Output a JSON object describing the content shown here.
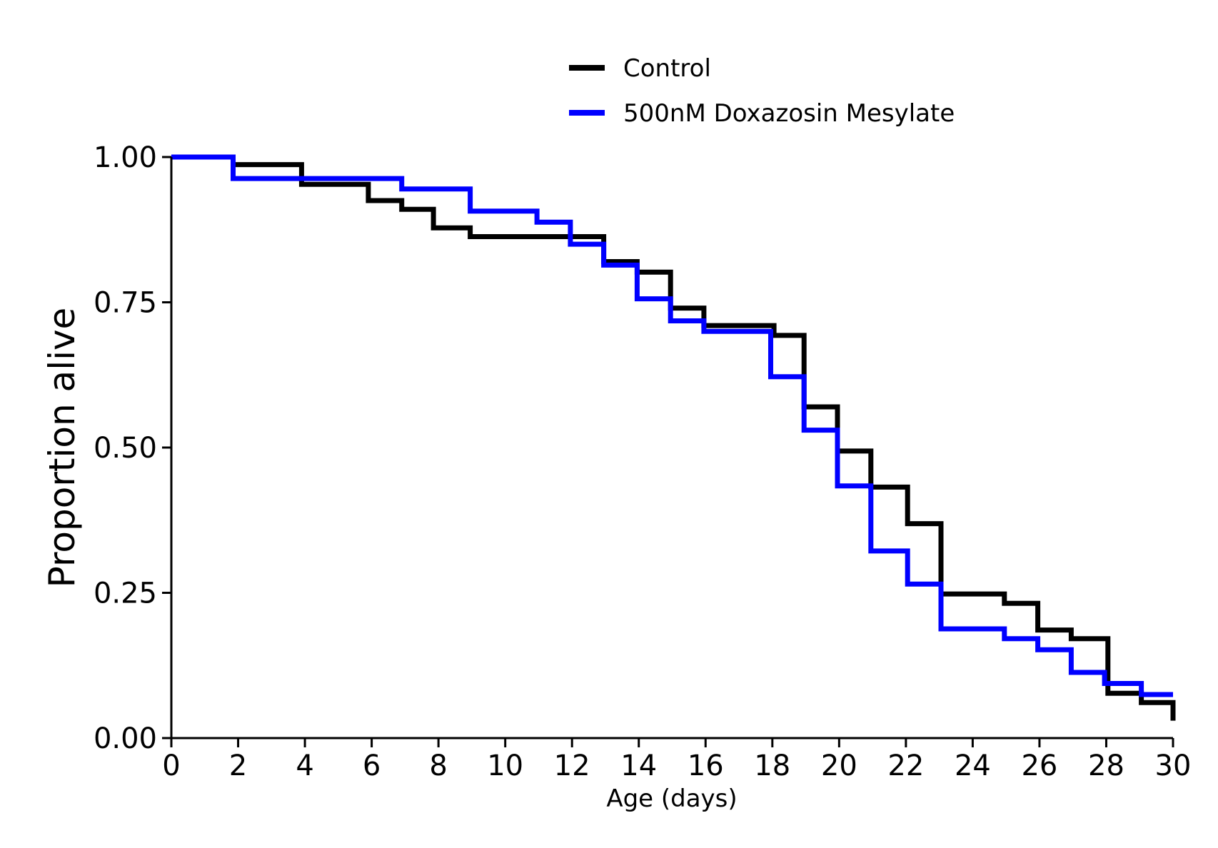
{
  "chart_data": {
    "type": "line",
    "step": true,
    "title": "",
    "xlabel": "Age (days)",
    "ylabel": "Proportion alive",
    "xlim": [
      0,
      30
    ],
    "ylim": [
      0,
      1
    ],
    "xticks": [
      0,
      2,
      4,
      6,
      8,
      10,
      12,
      14,
      16,
      18,
      20,
      22,
      24,
      26,
      28,
      30
    ],
    "xtick_labels": [
      "0",
      "2",
      "4",
      "6",
      "8",
      "10",
      "12",
      "14",
      "16",
      "18",
      "20",
      "22",
      "24",
      "26",
      "28",
      "30"
    ],
    "yticks": [
      0,
      0.25,
      0.5,
      0.75,
      1.0
    ],
    "ytick_labels": [
      "0.00",
      "0.25",
      "0.50",
      "0.75",
      "1.00"
    ],
    "grid": false,
    "legend_position": "top",
    "series": [
      {
        "name": "Control",
        "color": "#000000",
        "x": [
          0,
          1.85,
          3.9,
          5.9,
          6.9,
          7.85,
          8.95,
          12.95,
          13.95,
          14.95,
          15.95,
          18.05,
          18.95,
          19.95,
          20.95,
          22.05,
          23.05,
          24.95,
          25.95,
          26.95,
          28.05,
          29.05,
          30
        ],
        "y": [
          1.0,
          0.987,
          0.953,
          0.925,
          0.91,
          0.878,
          0.863,
          0.82,
          0.802,
          0.74,
          0.71,
          0.693,
          0.57,
          0.494,
          0.432,
          0.369,
          0.248,
          0.232,
          0.186,
          0.171,
          0.077,
          0.061,
          0.03
        ]
      },
      {
        "name": "500nM Doxazosin Mesylate",
        "color": "#0000ff",
        "x": [
          0,
          1.85,
          6.9,
          8.95,
          10.95,
          11.95,
          12.95,
          13.95,
          14.95,
          15.95,
          17.95,
          18.95,
          19.95,
          20.95,
          22.05,
          23.05,
          24.95,
          25.95,
          26.95,
          27.95,
          29.05,
          30
        ],
        "y": [
          1.0,
          0.963,
          0.945,
          0.907,
          0.888,
          0.85,
          0.814,
          0.756,
          0.718,
          0.7,
          0.622,
          0.53,
          0.434,
          0.322,
          0.265,
          0.188,
          0.171,
          0.152,
          0.113,
          0.094,
          0.075,
          0.075
        ]
      }
    ]
  }
}
